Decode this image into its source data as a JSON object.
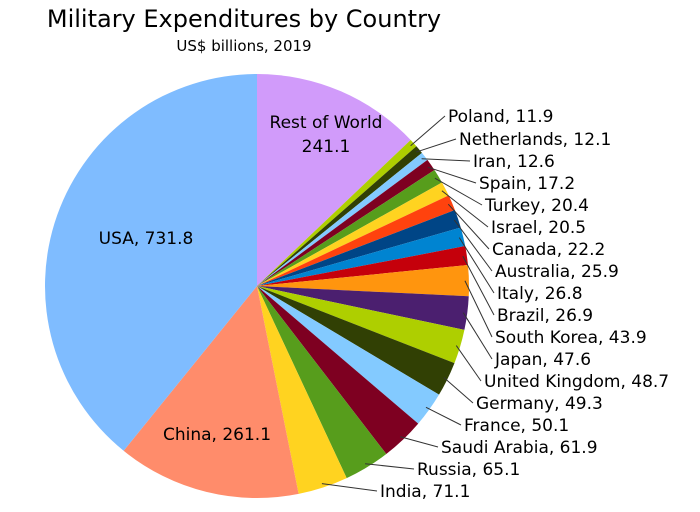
{
  "chart_data": {
    "type": "pie",
    "title": "Military Expenditures by Country",
    "subtitle": "US$ billions, 2019",
    "start": "top",
    "direction": "clockwise",
    "slices": [
      {
        "label": "Rest of World",
        "value": 241.1,
        "color": "#d19bfa",
        "text": "Rest of World",
        "value_text": "241.1",
        "inside": true
      },
      {
        "label": "Poland",
        "value": 11.9,
        "color": "#aecf00",
        "text": "Poland, 11.9"
      },
      {
        "label": "Netherlands",
        "value": 12.1,
        "color": "#314004",
        "text": "Netherlands, 12.1"
      },
      {
        "label": "Iran",
        "value": 12.6,
        "color": "#83caff",
        "text": "Iran, 12.6"
      },
      {
        "label": "Spain",
        "value": 17.2,
        "color": "#7e0021",
        "text": "Spain, 17.2"
      },
      {
        "label": "Turkey",
        "value": 20.4,
        "color": "#579d1c",
        "text": "Turkey, 20.4"
      },
      {
        "label": "Israel",
        "value": 20.5,
        "color": "#ffd320",
        "text": "Israel, 20.5"
      },
      {
        "label": "Canada",
        "value": 22.2,
        "color": "#ff420e",
        "text": "Canada, 22.2"
      },
      {
        "label": "Australia",
        "value": 25.9,
        "color": "#004586",
        "text": "Australia, 25.9"
      },
      {
        "label": "Italy",
        "value": 26.8,
        "color": "#0084d1",
        "text": "Italy, 26.8"
      },
      {
        "label": "Brazil",
        "value": 26.9,
        "color": "#c5000b",
        "text": "Brazil, 26.9"
      },
      {
        "label": "South Korea",
        "value": 43.9,
        "color": "#ff950e",
        "text": "South Korea, 43.9"
      },
      {
        "label": "Japan",
        "value": 47.6,
        "color": "#4b1f6f",
        "text": "Japan, 47.6"
      },
      {
        "label": "United Kingdom",
        "value": 48.7,
        "color": "#aecf00",
        "text": "United Kingdom, 48.7"
      },
      {
        "label": "Germany",
        "value": 49.3,
        "color": "#314004",
        "text": "Germany, 49.3"
      },
      {
        "label": "France",
        "value": 50.1,
        "color": "#83caff",
        "text": "France, 50.1"
      },
      {
        "label": "Saudi Arabia",
        "value": 61.9,
        "color": "#7e0021",
        "text": "Saudi Arabia, 61.9"
      },
      {
        "label": "Russia",
        "value": 65.1,
        "color": "#579d1c",
        "text": "Russia, 65.1"
      },
      {
        "label": "India",
        "value": 71.1,
        "color": "#ffd320",
        "text": "India, 71.1"
      },
      {
        "label": "China",
        "value": 261.1,
        "color": "#ff8c6b",
        "text": "China, 261.1",
        "inside": true
      },
      {
        "label": "USA",
        "value": 731.8,
        "color": "#7fbcff",
        "text": "USA, 731.8",
        "inside": true
      }
    ]
  }
}
